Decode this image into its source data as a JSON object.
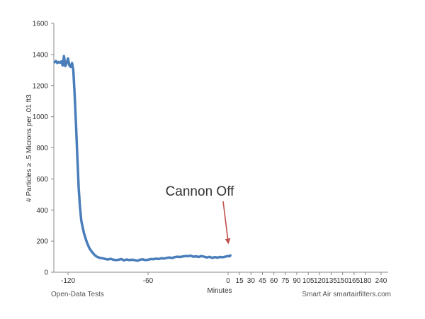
{
  "colors": {
    "series": "#4a7ebb",
    "annotation_arrow": "#c0504d",
    "axis": "#888888",
    "text": "#333333"
  },
  "footer": {
    "left": "Open-Data Tests",
    "right": "Smart Air smartairfilters.com"
  },
  "chart_data": {
    "type": "line",
    "xlabel": "Minutes",
    "ylabel": "# Particles ≥ .5 Microns per .01 ft3",
    "ylim": [
      0,
      1600
    ],
    "xlim": [
      -130,
      245
    ],
    "grid": false,
    "y_ticks": [
      0,
      200,
      400,
      600,
      800,
      1000,
      1200,
      1400,
      1600
    ],
    "x_ticks": [
      -120,
      -60,
      0,
      15,
      30,
      45,
      60,
      75,
      90,
      105,
      120,
      135,
      150,
      165,
      180,
      240
    ],
    "x_tick_labels": [
      "-120",
      "-60",
      "0",
      "15",
      "30",
      "45",
      "60",
      "75",
      "90",
      "105",
      "120",
      "135",
      "150",
      "165",
      "180",
      "240"
    ],
    "series": [
      {
        "x": [
          -130,
          -129,
          -128,
          -127,
          -126,
          -125,
          -124,
          -123,
          -122,
          -121,
          -120,
          -119,
          -118,
          -117,
          -116,
          -115,
          -114,
          -113,
          -112,
          -111,
          -110,
          -108,
          -106,
          -104,
          -102,
          -100,
          -98,
          -96,
          -94,
          -92,
          -90,
          -88,
          -86,
          -84,
          -82,
          -80,
          -78,
          -76,
          -74,
          -72,
          -70,
          -68,
          -66,
          -64,
          -62,
          -60,
          -58,
          -56,
          -54,
          -52,
          -50,
          -48,
          -46,
          -44,
          -42,
          -40,
          -38,
          -36,
          -34,
          -32,
          -30,
          -28,
          -26,
          -24,
          -22,
          -20,
          -18,
          -16,
          -14,
          -12,
          -10,
          -8,
          -6,
          -4,
          -2,
          0,
          2,
          3
        ],
        "values": [
          1350,
          1358,
          1345,
          1352,
          1348,
          1355,
          1330,
          1390,
          1325,
          1345,
          1375,
          1330,
          1320,
          1345,
          1300,
          1140,
          950,
          740,
          540,
          420,
          330,
          250,
          195,
          155,
          130,
          110,
          98,
          92,
          90,
          85,
          82,
          86,
          80,
          78,
          80,
          85,
          76,
          82,
          78,
          80,
          78,
          74,
          80,
          83,
          78,
          80,
          85,
          84,
          87,
          85,
          90,
          88,
          92,
          95,
          91,
          97,
          100,
          98,
          101,
          104,
          103,
          106,
          100,
          102,
          98,
          104,
          100,
          95,
          99,
          92,
          97,
          94,
          98,
          96,
          100,
          104,
          102,
          108
        ]
      }
    ],
    "annotations": [
      {
        "text": "Cannon Off",
        "x": 0,
        "y": 350,
        "arrow_to": [
          0,
          180
        ]
      }
    ]
  }
}
